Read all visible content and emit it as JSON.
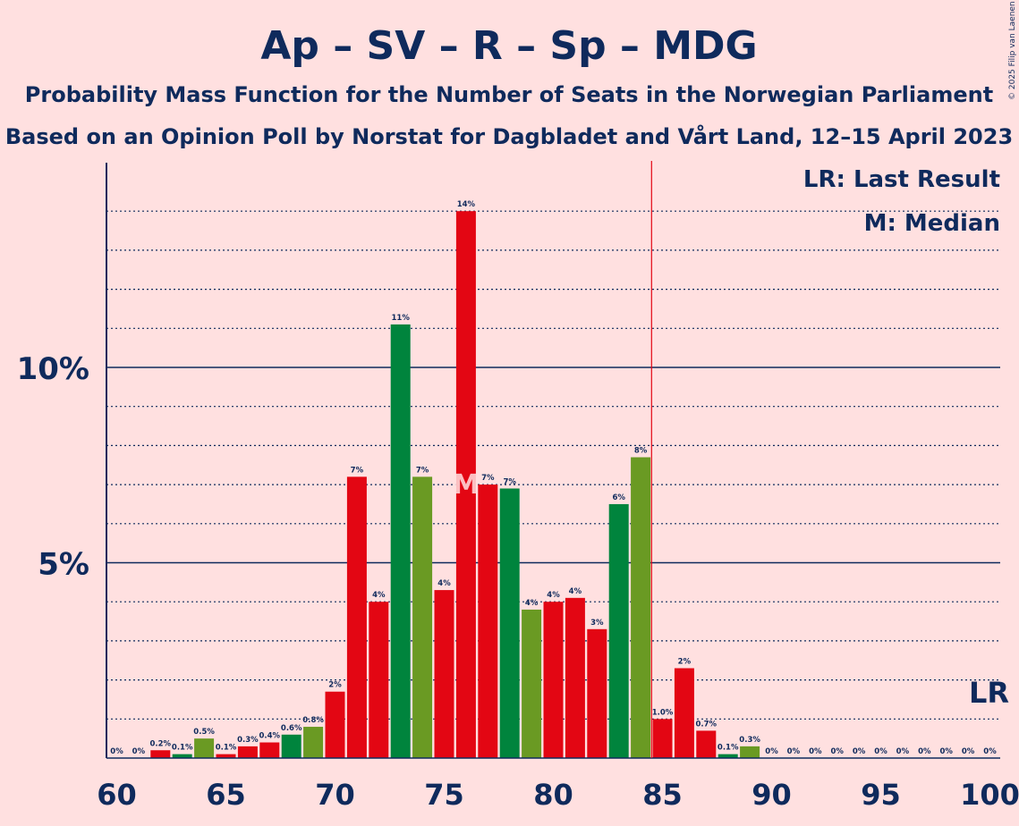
{
  "chart_data": {
    "type": "bar",
    "title": "Ap – SV – R – Sp – MDG",
    "subtitle_1": "Probability Mass Function for the Number of Seats in the Norwegian Parliament",
    "subtitle_2": "Based on an Opinion Poll by Norstat for Dagbladet and Vårt Land, 12–15 April 2023",
    "copyright": "© 2025 Filip van Laenen",
    "legend_lr": "LR: Last Result",
    "legend_median": "M: Median",
    "lr_marker_label": "LR",
    "median_marker_label": "M",
    "last_result_seat": 100,
    "majority_seat": 85,
    "median_seat": 76,
    "x_ticks": [
      "60",
      "65",
      "70",
      "75",
      "80",
      "85",
      "90",
      "95",
      "100"
    ],
    "y_ticks": [
      "5%",
      "10%"
    ],
    "xlim": [
      60,
      100
    ],
    "ylim": [
      0,
      15
    ],
    "grid": true,
    "seats": [
      60,
      61,
      62,
      63,
      64,
      65,
      66,
      67,
      68,
      69,
      70,
      71,
      72,
      73,
      74,
      75,
      76,
      77,
      78,
      79,
      80,
      81,
      82,
      83,
      84,
      85,
      86,
      87,
      88,
      89,
      90,
      91,
      92,
      93,
      94,
      95,
      96,
      97,
      98,
      99,
      100
    ],
    "values": [
      0,
      0,
      0.2,
      0.1,
      0.5,
      0.1,
      0.3,
      0.4,
      0.6,
      0.8,
      1.7,
      7.2,
      4.0,
      11.1,
      7.2,
      4.3,
      14.0,
      7.0,
      6.9,
      3.8,
      4.0,
      4.1,
      3.3,
      6.5,
      7.7,
      1.0,
      2.3,
      0.7,
      0.1,
      0.3,
      0,
      0,
      0,
      0,
      0,
      0,
      0,
      0,
      0,
      0,
      0
    ],
    "labels": [
      "0%",
      "0%",
      "0.2%",
      "0.1%",
      "0.5%",
      "0.1%",
      "0.3%",
      "0.4%",
      "0.6%",
      "0.8%",
      "2%",
      "7%",
      "4%",
      "11%",
      "7%",
      "4%",
      "14%",
      "7%",
      "7%",
      "4%",
      "4%",
      "4%",
      "3%",
      "6%",
      "8%",
      "1.0%",
      "2%",
      "0.7%",
      "0.1%",
      "0.3%",
      "0%",
      "0%",
      "0%",
      "0%",
      "0%",
      "0%",
      "0%",
      "0%",
      "0%",
      "0%",
      "0%"
    ],
    "colors": [
      "#E30613",
      "#E30613",
      "#E30613",
      "#00843D",
      "#6A9A23",
      "#E30613",
      "#E30613",
      "#E30613",
      "#00843D",
      "#6A9A23",
      "#E30613",
      "#E30613",
      "#E30613",
      "#00843D",
      "#6A9A23",
      "#E30613",
      "#E30613",
      "#E30613",
      "#00843D",
      "#6A9A23",
      "#E30613",
      "#E30613",
      "#E30613",
      "#00843D",
      "#6A9A23",
      "#E30613",
      "#E30613",
      "#E30613",
      "#00843D",
      "#6A9A23",
      "#E30613",
      "#E30613",
      "#E30613",
      "#00843D",
      "#6A9A23",
      "#E30613",
      "#E30613",
      "#E30613",
      "#00843D",
      "#6A9A23",
      "#E30613"
    ]
  }
}
